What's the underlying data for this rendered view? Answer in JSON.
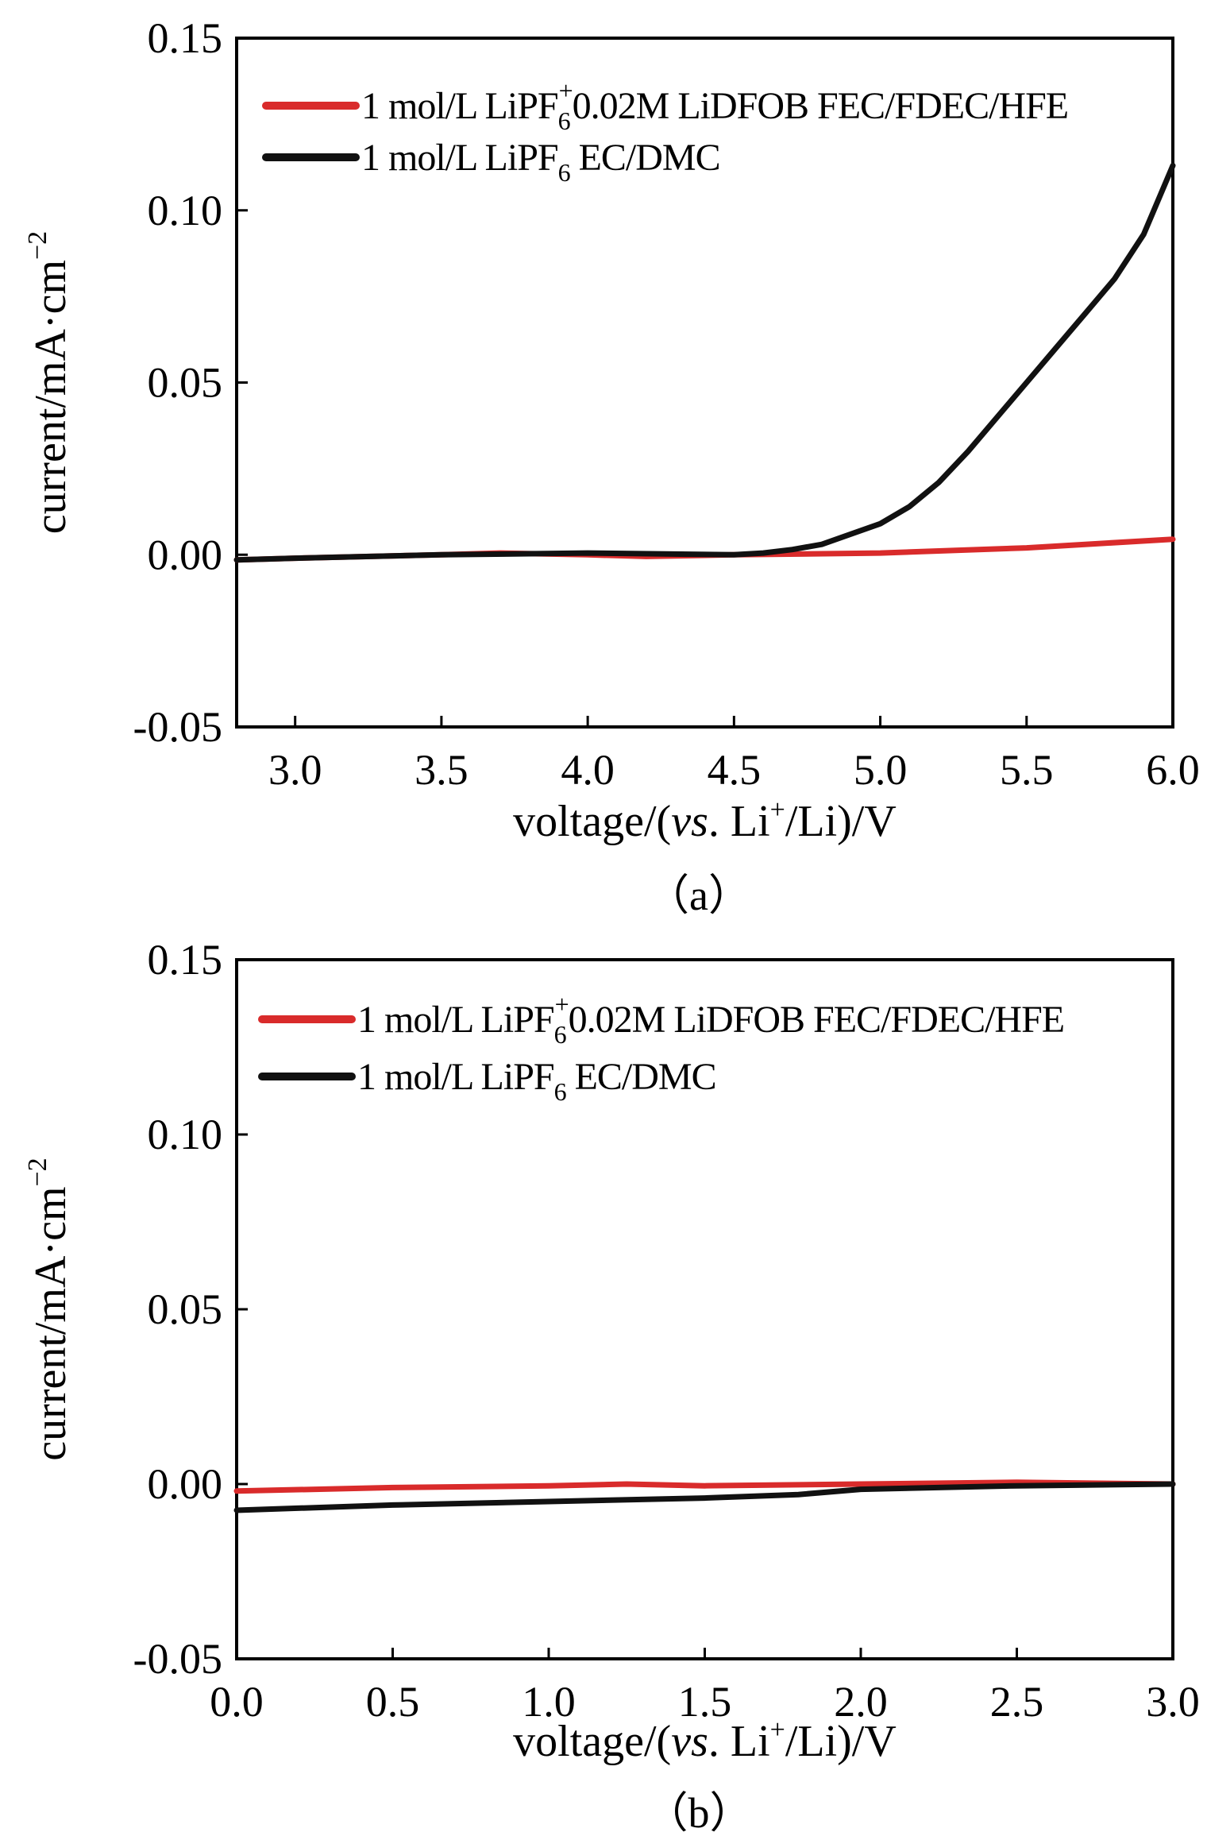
{
  "colors": {
    "red_series": "#d92b2b",
    "black_series": "#111111",
    "axis": "#000000"
  },
  "chart_data": [
    {
      "type": "line",
      "caption": "（a）",
      "xlabel_parts": [
        "voltage/(",
        "vs",
        ". Li",
        "+",
        "/Li)/V"
      ],
      "ylabel_parts": [
        "current/mA·cm",
        "−2"
      ],
      "xlim": [
        2.8,
        6.0
      ],
      "ylim": [
        -0.05,
        0.15
      ],
      "xticks": [
        "3.0",
        "3.5",
        "4.0",
        "4.5",
        "5.0",
        "5.5",
        "6.0"
      ],
      "yticks": [
        "0.15",
        "0.10",
        "0.05",
        "0.00",
        "-0.05"
      ],
      "legend_position": "top",
      "series": [
        {
          "name": "1 mol/L LiPF6+0.02M LiDFOB FEC/FDEC/HFE",
          "label_parts": [
            "1 mol/L LiPF",
            "6",
            "+",
            "0.02M LiDFOB FEC/FDEC/HFE"
          ],
          "color": "#d92b2b",
          "x": [
            2.8,
            3.0,
            3.5,
            3.7,
            4.0,
            4.2,
            4.5,
            5.0,
            5.5,
            6.0
          ],
          "y": [
            -0.0015,
            -0.001,
            0.0,
            0.0005,
            0.0,
            -0.0005,
            0.0,
            0.0005,
            0.002,
            0.0045
          ]
        },
        {
          "name": "1 mol/L LiPF6 EC/DMC",
          "label_parts": [
            "1 mol/L LiPF",
            "6",
            "",
            " EC/DMC"
          ],
          "color": "#111111",
          "x": [
            2.8,
            3.0,
            3.5,
            4.0,
            4.5,
            4.6,
            4.7,
            4.8,
            4.9,
            5.0,
            5.1,
            5.2,
            5.3,
            5.4,
            5.5,
            5.6,
            5.7,
            5.8,
            5.9,
            6.0
          ],
          "y": [
            -0.0015,
            -0.001,
            0.0,
            0.0005,
            0.0,
            0.0005,
            0.0015,
            0.003,
            0.006,
            0.009,
            0.014,
            0.021,
            0.03,
            0.04,
            0.05,
            0.06,
            0.07,
            0.08,
            0.093,
            0.113
          ]
        }
      ]
    },
    {
      "type": "line",
      "caption": "（b）",
      "xlabel_parts": [
        "voltage/(",
        "vs",
        ". Li",
        "+",
        "/Li)/V"
      ],
      "ylabel_parts": [
        "current/mA·cm",
        "−2"
      ],
      "xlim": [
        0.0,
        3.0
      ],
      "ylim": [
        -0.05,
        0.15
      ],
      "xticks": [
        "0.0",
        "0.5",
        "1.0",
        "1.5",
        "2.0",
        "2.5",
        "3.0"
      ],
      "yticks": [
        "0.15",
        "0.10",
        "0.05",
        "0.00",
        "-0.05"
      ],
      "legend_position": "top",
      "series": [
        {
          "name": "1 mol/L LiPF6+0.02M LiDFOB FEC/FDEC/HFE",
          "label_parts": [
            "1 mol/L LiPF",
            "6",
            "+",
            "0.02M LiDFOB FEC/FDEC/HFE"
          ],
          "color": "#d92b2b",
          "x": [
            0.0,
            0.5,
            1.0,
            1.25,
            1.5,
            2.0,
            2.5,
            3.0
          ],
          "y": [
            -0.002,
            -0.001,
            -0.0005,
            0.0,
            -0.0005,
            0.0,
            0.0005,
            0.0
          ]
        },
        {
          "name": "1 mol/L LiPF6 EC/DMC",
          "label_parts": [
            "1 mol/L LiPF",
            "6",
            "",
            " EC/DMC"
          ],
          "color": "#111111",
          "x": [
            0.0,
            0.5,
            1.0,
            1.5,
            1.8,
            2.0,
            2.5,
            3.0
          ],
          "y": [
            -0.0075,
            -0.006,
            -0.005,
            -0.004,
            -0.003,
            -0.0015,
            -0.0005,
            0.0
          ]
        }
      ]
    }
  ]
}
